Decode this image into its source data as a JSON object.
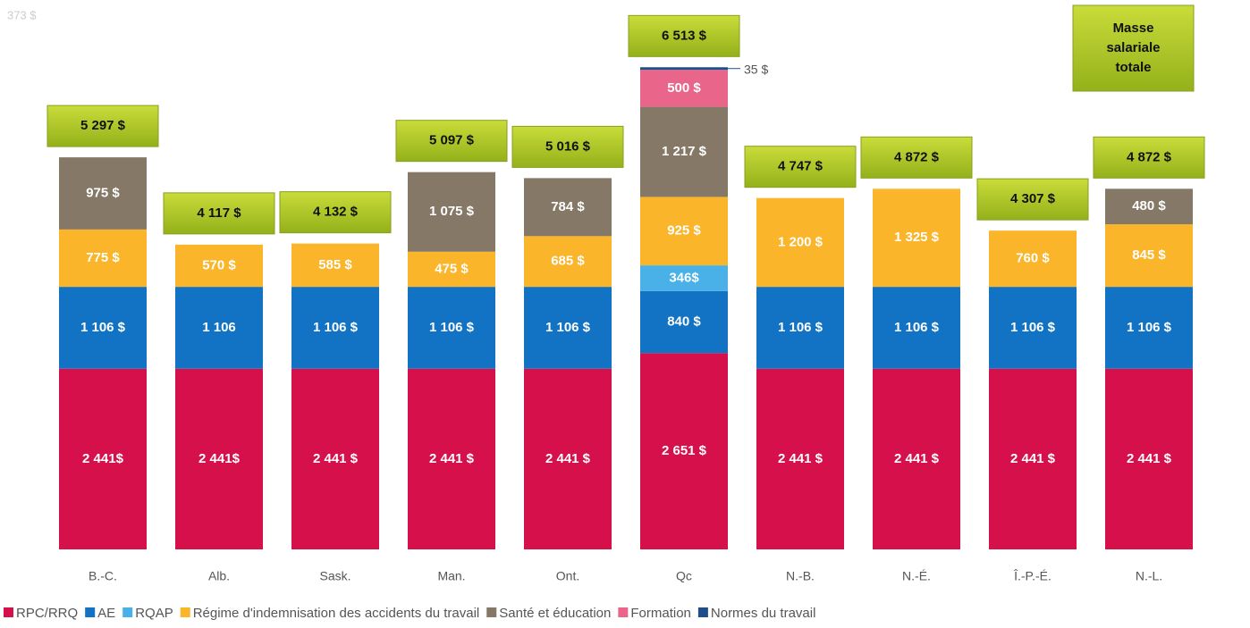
{
  "chart_data": {
    "type": "stacked_bar",
    "annotation": "373 $",
    "total_box_title": "Masse salariale totale",
    "categories": [
      "B.-C.",
      "Alb.",
      "Sask.",
      "Man.",
      "Ont.",
      "Qc",
      "N.-B.",
      "N.-É.",
      "Î.-P.-É.",
      "N.-L."
    ],
    "ylim": [
      0,
      7000
    ],
    "series": [
      {
        "name": "RPC/RRQ",
        "color": "#d5104a",
        "values": [
          2441,
          2441,
          2441,
          2441,
          2441,
          2651,
          2441,
          2441,
          2441,
          2441
        ],
        "value_labels": [
          "2 441$",
          "2 441$",
          "2 441 $",
          "2 441 $",
          "2 441 $",
          "2 651 $",
          "2 441 $",
          "2 441 $",
          "2 441 $",
          "2 441 $"
        ]
      },
      {
        "name": "AE",
        "color": "#1272c4",
        "values": [
          1106,
          1106,
          1106,
          1106,
          1106,
          840,
          1106,
          1106,
          1106,
          1106
        ],
        "value_labels": [
          "1 106 $",
          "1 106",
          "1 106 $",
          "1 106 $",
          "1 106 $",
          "840 $",
          "1 106 $",
          "1 106 $",
          "1 106 $",
          "1 106 $"
        ]
      },
      {
        "name": "RQAP",
        "color": "#49b1e8",
        "values": [
          null,
          null,
          null,
          null,
          null,
          346,
          null,
          null,
          null,
          null
        ],
        "value_labels": [
          null,
          null,
          null,
          null,
          null,
          "346$",
          null,
          null,
          null,
          null
        ]
      },
      {
        "name": "Régime d'indemnisation des accidents du travail",
        "color": "#fbb52b",
        "values": [
          775,
          570,
          585,
          475,
          685,
          925,
          1200,
          1325,
          760,
          845
        ],
        "value_labels": [
          "775 $",
          "570 $",
          "585 $",
          "475 $",
          "685 $",
          "925 $",
          "1 200 $",
          "1 325 $",
          "760 $",
          "845 $"
        ]
      },
      {
        "name": "Santé et éducation",
        "color": "#857866",
        "values": [
          975,
          null,
          null,
          1075,
          784,
          1217,
          null,
          null,
          null,
          480
        ],
        "value_labels": [
          "975 $",
          null,
          null,
          "1 075 $",
          "784 $",
          "1 217 $",
          null,
          null,
          null,
          "480 $"
        ]
      },
      {
        "name": "Formation",
        "color": "#e9658a",
        "values": [
          null,
          null,
          null,
          null,
          null,
          500,
          null,
          null,
          null,
          null
        ],
        "value_labels": [
          null,
          null,
          null,
          null,
          null,
          "500 $",
          null,
          null,
          null,
          null
        ]
      },
      {
        "name": "Normes du travail",
        "color": "#1f4e8c",
        "values": [
          null,
          null,
          null,
          null,
          null,
          35,
          null,
          null,
          null,
          null
        ],
        "value_labels": [
          null,
          null,
          null,
          null,
          null,
          "35 $",
          null,
          null,
          null,
          null
        ]
      }
    ],
    "totals": [
      5297,
      4117,
      4132,
      5097,
      5016,
      6513,
      4747,
      4872,
      4307,
      4872
    ],
    "total_labels": [
      "5 297 $",
      "4 117 $",
      "4 132 $",
      "5 097 $",
      "5 016 $",
      "6 513 $",
      "4 747 $",
      "4 872 $",
      "4 307 $",
      "4 872 $"
    ]
  }
}
